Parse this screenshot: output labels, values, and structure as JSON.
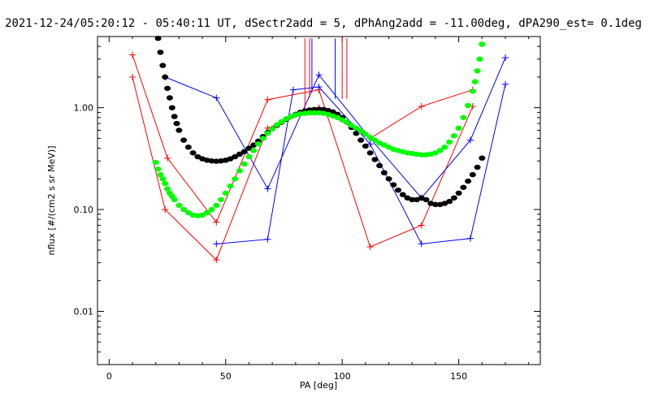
{
  "chart_data": {
    "type": "line",
    "title": "2021-12-24/05:20:12 - 05:40:11 UT, dSectr2add = 5, dPhAng2add = -11.00deg, dPA290_est=    0.1deg",
    "xlabel": "PA [deg]",
    "ylabel": "nflux [#/(cm2 s sr MeV)]",
    "xlim": [
      -5,
      185
    ],
    "ylim": [
      0.003,
      5.0
    ],
    "yscale": "log",
    "grid": false,
    "xticks": [
      0,
      50,
      100,
      150
    ],
    "xtick_labels": [
      "0",
      "50",
      "100",
      "150"
    ],
    "yticks": [
      0.01,
      0.1,
      1.0
    ],
    "ytick_labels": [
      "0.01",
      "0.10",
      "1.00"
    ],
    "series": [
      {
        "color": "#ff0000",
        "marker": "+",
        "line": true,
        "x": [
          10,
          25,
          46,
          68,
          90,
          112,
          134,
          156
        ],
        "y": [
          3.3,
          0.32,
          0.075,
          1.2,
          1.5,
          0.043,
          0.07,
          1.03
        ]
      },
      {
        "color": "#ff0000",
        "marker": "+",
        "line": true,
        "x": [
          10,
          24,
          46,
          68,
          90,
          112,
          134,
          156
        ],
        "y": [
          2.0,
          0.1,
          0.032,
          0.63,
          1.0,
          0.5,
          1.03,
          1.5
        ]
      },
      {
        "color": "#0000ff",
        "marker": "+",
        "line": true,
        "x": [
          24,
          46,
          68,
          90,
          112,
          134,
          155,
          170
        ],
        "y": [
          2.0,
          1.25,
          0.16,
          2.1,
          0.5,
          0.13,
          0.48,
          3.1
        ]
      },
      {
        "color": "#0000ff",
        "marker": "+",
        "line": true,
        "x": [
          46,
          68,
          79,
          90,
          112,
          134,
          155,
          170
        ],
        "y": [
          0.046,
          0.051,
          1.5,
          1.6,
          0.44,
          0.046,
          0.052,
          1.7
        ]
      },
      {
        "color": "#000000",
        "marker": "dot",
        "line": false,
        "x": [
          21,
          22,
          23,
          24,
          25,
          26,
          27,
          28,
          29,
          30,
          32,
          34,
          36,
          38,
          40,
          42,
          44,
          46,
          48,
          50,
          52,
          54,
          56,
          58,
          60,
          62,
          64,
          66,
          68,
          70,
          72,
          74,
          76,
          78,
          80,
          82,
          84,
          86,
          88,
          90,
          92,
          94,
          96,
          98,
          100,
          102,
          104,
          106,
          108,
          110,
          112,
          114,
          116,
          118,
          120,
          122,
          124,
          126,
          128,
          130,
          132,
          134,
          136,
          138,
          140,
          142,
          144,
          146,
          148,
          150,
          152,
          154,
          156,
          158,
          160
        ],
        "y": [
          4.8,
          3.5,
          2.6,
          2.0,
          1.55,
          1.25,
          1.0,
          0.82,
          0.7,
          0.6,
          0.48,
          0.41,
          0.36,
          0.33,
          0.315,
          0.305,
          0.3,
          0.298,
          0.3,
          0.305,
          0.315,
          0.33,
          0.35,
          0.37,
          0.4,
          0.43,
          0.47,
          0.52,
          0.57,
          0.62,
          0.67,
          0.72,
          0.77,
          0.82,
          0.86,
          0.9,
          0.93,
          0.95,
          0.96,
          0.965,
          0.96,
          0.94,
          0.91,
          0.86,
          0.8,
          0.72,
          0.64,
          0.56,
          0.48,
          0.42,
          0.36,
          0.31,
          0.27,
          0.23,
          0.2,
          0.175,
          0.155,
          0.14,
          0.13,
          0.125,
          0.125,
          0.13,
          0.125,
          0.115,
          0.112,
          0.112,
          0.115,
          0.12,
          0.13,
          0.145,
          0.165,
          0.19,
          0.22,
          0.26,
          0.32
        ]
      },
      {
        "color": "#00ff00",
        "marker": "dot",
        "line": false,
        "x": [
          20,
          21,
          22,
          23,
          24,
          25,
          26,
          27,
          28,
          30,
          32,
          34,
          36,
          38,
          40,
          42,
          44,
          46,
          48,
          50,
          52,
          54,
          56,
          58,
          60,
          62,
          64,
          66,
          68,
          70,
          72,
          74,
          76,
          78,
          80,
          82,
          84,
          86,
          88,
          90,
          92,
          94,
          96,
          98,
          100,
          102,
          104,
          106,
          108,
          110,
          112,
          114,
          116,
          118,
          120,
          122,
          124,
          126,
          128,
          130,
          132,
          134,
          136,
          138,
          140,
          142,
          144,
          146,
          148,
          150,
          152,
          154,
          156,
          157,
          158,
          159,
          160
        ],
        "y": [
          0.29,
          0.25,
          0.22,
          0.2,
          0.18,
          0.16,
          0.145,
          0.135,
          0.125,
          0.11,
          0.1,
          0.093,
          0.088,
          0.087,
          0.088,
          0.093,
          0.1,
          0.11,
          0.125,
          0.145,
          0.17,
          0.2,
          0.24,
          0.28,
          0.33,
          0.38,
          0.44,
          0.5,
          0.56,
          0.62,
          0.68,
          0.73,
          0.78,
          0.82,
          0.85,
          0.87,
          0.88,
          0.89,
          0.89,
          0.89,
          0.88,
          0.86,
          0.83,
          0.8,
          0.76,
          0.72,
          0.67,
          0.63,
          0.59,
          0.55,
          0.51,
          0.48,
          0.45,
          0.43,
          0.41,
          0.39,
          0.38,
          0.37,
          0.36,
          0.355,
          0.35,
          0.345,
          0.345,
          0.35,
          0.36,
          0.38,
          0.41,
          0.46,
          0.53,
          0.63,
          0.8,
          1.05,
          1.45,
          1.8,
          2.3,
          3.0,
          4.2
        ]
      }
    ],
    "vlines": [
      {
        "x": 84,
        "color": "#ff0000",
        "from": 4.8,
        "to": 1.0
      },
      {
        "x": 86,
        "color": "#ff0000",
        "from": 4.8,
        "to": 1.25
      },
      {
        "x": 100,
        "color": "#ff0000",
        "from": 4.8,
        "to": 1.22
      },
      {
        "x": 102,
        "color": "#ff0000",
        "from": 4.8,
        "to": 1.22
      },
      {
        "x": 87,
        "color": "#0000ff",
        "from": 4.8,
        "to": 1.42
      },
      {
        "x": 97,
        "color": "#0000ff",
        "from": 4.8,
        "to": 1.22
      }
    ]
  }
}
